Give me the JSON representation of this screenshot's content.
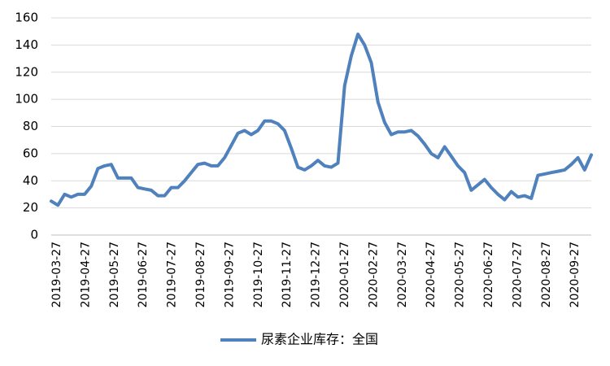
{
  "chart_data": {
    "type": "line",
    "title": "",
    "xlabel": "",
    "ylabel": "",
    "ylim": [
      0,
      160
    ],
    "yticks": [
      0,
      20,
      40,
      60,
      80,
      100,
      120,
      140,
      160
    ],
    "grid": true,
    "legend_position": "bottom",
    "x_tick_labels": [
      "2019-03-27",
      "2019-04-27",
      "2019-05-27",
      "2019-06-27",
      "2019-07-27",
      "2019-08-27",
      "2019-09-27",
      "2019-10-27",
      "2019-11-27",
      "2019-12-27",
      "2020-01-27",
      "2020-02-27",
      "2020-03-27",
      "2020-04-27",
      "2020-05-27",
      "2020-06-27",
      "2020-07-27",
      "2020-08-27",
      "2020-09-27"
    ],
    "series": [
      {
        "name": "尿素企业库存：全国",
        "color": "#4f81bd",
        "values": [
          25,
          22,
          30,
          28,
          30,
          30,
          36,
          49,
          51,
          52,
          42,
          42,
          42,
          35,
          34,
          33,
          29,
          29,
          35,
          35,
          40,
          46,
          52,
          53,
          51,
          51,
          57,
          66,
          75,
          77,
          74,
          77,
          84,
          84,
          82,
          77,
          64,
          50,
          48,
          51,
          55,
          51,
          50,
          53,
          110,
          132,
          148,
          140,
          127,
          98,
          83,
          74,
          76,
          76,
          77,
          73,
          67,
          60,
          57,
          65,
          58,
          51,
          46,
          33,
          37,
          41,
          35,
          30,
          26,
          32,
          28,
          29,
          27,
          44,
          45,
          46,
          47,
          48,
          52,
          57,
          48,
          59
        ]
      }
    ]
  }
}
